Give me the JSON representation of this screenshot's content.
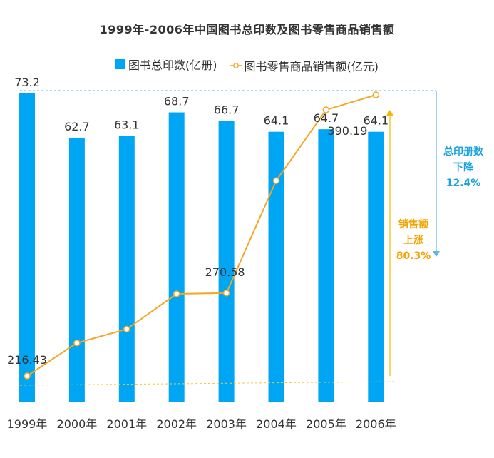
{
  "title": "1999年-2006年中国图书总印数及图书零售商品销售额",
  "legend": {
    "bar_label": "图书总印数(亿册)",
    "line_label": "图书零售商品销售额(亿元)"
  },
  "colors": {
    "bar": "#00a6f4",
    "line": "#f5a623",
    "ann_blue": "#1aa3df",
    "ann_orange": "#f5a300"
  },
  "annotations": {
    "print": {
      "line1": "总印册数",
      "line2": "下降",
      "line3": "12.4%"
    },
    "sales": {
      "line1": "销售额",
      "line2": "上涨",
      "line3": "80.3%"
    }
  },
  "chart_data": {
    "type": "bar",
    "categories": [
      "1999年",
      "2000年",
      "2001年",
      "2002年",
      "2003年",
      "2004年",
      "2005年",
      "2006年"
    ],
    "series": [
      {
        "name": "图书总印数(亿册)",
        "type": "bar",
        "values": [
          73.2,
          62.7,
          63.1,
          68.7,
          66.7,
          64.1,
          64.7,
          64.1
        ]
      },
      {
        "name": "图书零售商品销售额(亿元)",
        "type": "line",
        "values": [
          216.43,
          238,
          247,
          270,
          270.58,
          344,
          390.19,
          400
        ]
      }
    ],
    "labels_bar": [
      "73.2",
      "62.7",
      "63.1",
      "68.7",
      "66.7",
      "64.1",
      "64.7",
      "64.1"
    ],
    "labels_line": [
      "216.43",
      "",
      "",
      "",
      "270.58",
      "",
      "390.19",
      ""
    ],
    "grid": false,
    "legend_position": "top"
  }
}
